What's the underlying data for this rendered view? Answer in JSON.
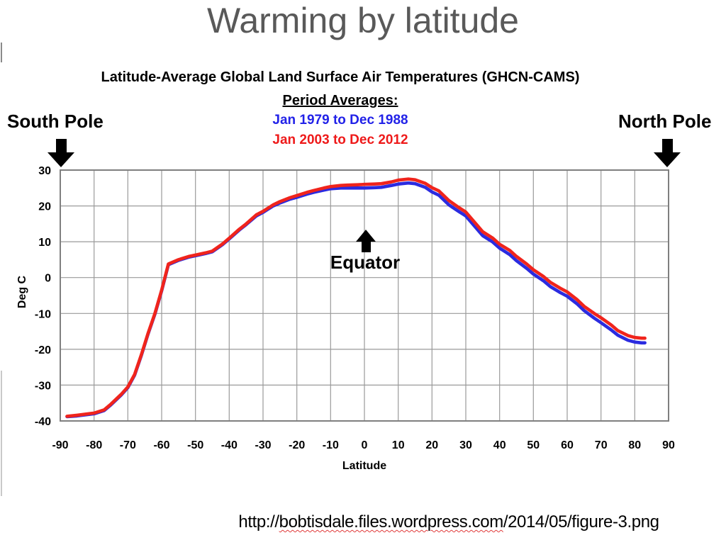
{
  "page": {
    "title": "Warming by latitude"
  },
  "annotations": {
    "south_pole": "South Pole",
    "north_pole": "North Pole",
    "equator": "Equator"
  },
  "source_url": {
    "prefix": "http://",
    "underlined": "bobtisdale.files.wordpress.com",
    "suffix": "/2014/05/figure-3.png"
  },
  "colors": {
    "slide_title_gray": "#595959",
    "legend_blue": "#2222e8",
    "legend_red": "#ee1a1a",
    "line_blue": "#2b2be0",
    "line_red": "#f0241c",
    "grid_gray": "#9a9a9a",
    "border_gray": "#7f7f7f"
  },
  "chart_data": {
    "type": "line",
    "title": "Latitude-Average Global Land Surface Air Temperatures (GHCN-CAMS)",
    "legend_heading": "Period Averages:",
    "xlabel": "Latitude",
    "ylabel": "Deg C",
    "xlim": [
      -90,
      90
    ],
    "ylim": [
      -40,
      30
    ],
    "grid": true,
    "legend_position": "top-center",
    "xticks": [
      -90,
      -80,
      -70,
      -60,
      -50,
      -40,
      -30,
      -20,
      -10,
      0,
      10,
      20,
      30,
      40,
      50,
      60,
      70,
      80,
      90
    ],
    "yticks": [
      30,
      20,
      10,
      0,
      -10,
      -20,
      -30,
      -40
    ],
    "x": [
      -88,
      -85,
      -80,
      -77,
      -75,
      -72,
      -70,
      -68,
      -66,
      -64,
      -62,
      -60,
      -58,
      -55,
      -52,
      -50,
      -47,
      -45,
      -42,
      -40,
      -37,
      -35,
      -32,
      -30,
      -27,
      -25,
      -22,
      -20,
      -17,
      -15,
      -12,
      -10,
      -7,
      -5,
      -2,
      0,
      3,
      5,
      8,
      10,
      13,
      15,
      18,
      20,
      22,
      25,
      28,
      30,
      33,
      35,
      38,
      40,
      43,
      45,
      48,
      50,
      53,
      55,
      58,
      60,
      63,
      65,
      68,
      70,
      73,
      75,
      78,
      80,
      82,
      83
    ],
    "series": [
      {
        "name": "Jan 1979 to Dec 1988",
        "color": "#2b2be0",
        "values": [
          -38.8,
          -38.6,
          -38.0,
          -37.1,
          -35.5,
          -32.8,
          -30.7,
          -27.2,
          -21.7,
          -15.7,
          -10.2,
          -3.7,
          3.6,
          4.8,
          5.7,
          6.1,
          6.7,
          7.2,
          9.2,
          10.8,
          13.3,
          14.8,
          17.2,
          18.2,
          20.0,
          20.8,
          21.9,
          22.4,
          23.3,
          23.8,
          24.4,
          24.8,
          25.0,
          25.0,
          25.0,
          25.0,
          25.1,
          25.2,
          25.7,
          26.1,
          26.4,
          26.2,
          25.2,
          23.9,
          23.0,
          20.3,
          18.4,
          17.2,
          13.9,
          11.7,
          9.9,
          8.2,
          6.4,
          4.7,
          2.6,
          1.0,
          -0.9,
          -2.5,
          -4.2,
          -5.2,
          -7.4,
          -9.2,
          -11.3,
          -12.6,
          -14.6,
          -16.1,
          -17.5,
          -18.0,
          -18.2,
          -18.2
        ]
      },
      {
        "name": "Jan 2003 to Dec 2012",
        "color": "#f0241c",
        "values": [
          -38.7,
          -38.4,
          -37.8,
          -36.9,
          -35.3,
          -32.6,
          -30.5,
          -27.0,
          -21.5,
          -15.5,
          -10.0,
          -3.5,
          3.8,
          5.0,
          5.9,
          6.3,
          6.9,
          7.4,
          9.4,
          11.0,
          13.5,
          15.0,
          17.5,
          18.5,
          20.3,
          21.2,
          22.3,
          22.9,
          23.8,
          24.3,
          25.0,
          25.4,
          25.7,
          25.8,
          25.9,
          26.0,
          26.1,
          26.2,
          26.7,
          27.2,
          27.5,
          27.3,
          26.3,
          25.1,
          24.2,
          21.5,
          19.5,
          18.3,
          15.0,
          12.8,
          11.0,
          9.3,
          7.6,
          5.9,
          3.8,
          2.2,
          0.3,
          -1.3,
          -3.0,
          -4.0,
          -6.2,
          -8.0,
          -10.0,
          -11.2,
          -13.2,
          -14.8,
          -16.2,
          -16.7,
          -16.9,
          -16.9
        ]
      }
    ]
  }
}
